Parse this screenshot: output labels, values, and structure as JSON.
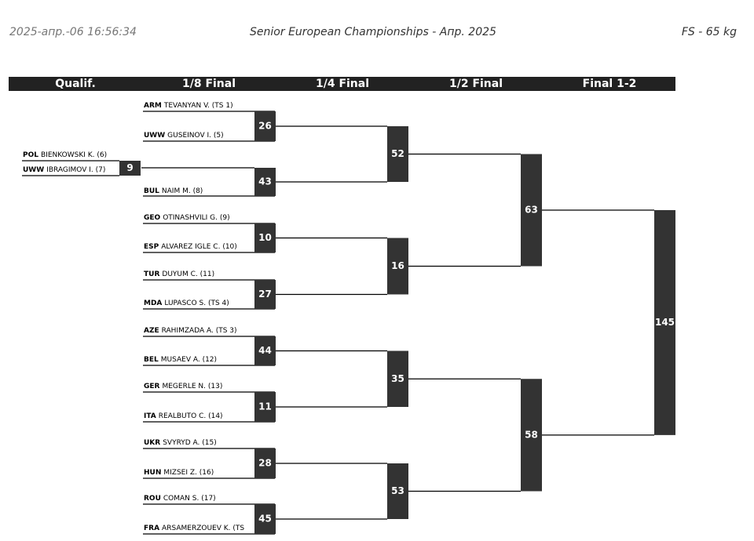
{
  "header": {
    "timestamp": "2025-апр.-06 16:56:34",
    "title": "Senior European Championships - Апр. 2025",
    "category": "FS - 65 kg"
  },
  "rounds": [
    "Qualif.",
    "1/8 Final",
    "1/4 Final",
    "1/2 Final",
    "Final 1-2"
  ],
  "qualif": {
    "entries": [
      {
        "country": "POL",
        "name": "BIENKOWSKI K. (6)"
      },
      {
        "country": "UWW",
        "name": "IBRAGIMOV I. (7)"
      }
    ],
    "match": 9
  },
  "eighth": [
    {
      "entries": [
        {
          "country": "ARM",
          "name": "TEVANYAN V. (TS 1)"
        },
        {
          "country": "UWW",
          "name": "GUSEINOV I. (5)"
        }
      ],
      "match": 26
    },
    {
      "entries": [
        {
          "country": "BUL",
          "name": "NAIM M. (8)"
        }
      ],
      "match": 43
    },
    {
      "entries": [
        {
          "country": "GEO",
          "name": "OTINASHVILI G. (9)"
        },
        {
          "country": "ESP",
          "name": "ALVAREZ IGLE C. (10)"
        }
      ],
      "match": 10
    },
    {
      "entries": [
        {
          "country": "TUR",
          "name": "DUYUM C. (11)"
        },
        {
          "country": "MDA",
          "name": "LUPASCO S. (TS 4)"
        }
      ],
      "match": 27
    },
    {
      "entries": [
        {
          "country": "AZE",
          "name": "RAHIMZADA A. (TS 3)"
        },
        {
          "country": "BEL",
          "name": "MUSAEV A. (12)"
        }
      ],
      "match": 44
    },
    {
      "entries": [
        {
          "country": "GER",
          "name": "MEGERLE N. (13)"
        },
        {
          "country": "ITA",
          "name": "REALBUTO C. (14)"
        }
      ],
      "match": 11
    },
    {
      "entries": [
        {
          "country": "UKR",
          "name": "SVYRYD A. (15)"
        },
        {
          "country": "HUN",
          "name": "MIZSEI Z. (16)"
        }
      ],
      "match": 28
    },
    {
      "entries": [
        {
          "country": "ROU",
          "name": "COMAN S. (17)"
        },
        {
          "country": "FRA",
          "name": "ARSAMERZOUEV K. (TS"
        }
      ],
      "match": 45
    }
  ],
  "quarter": [
    52,
    16,
    35,
    53
  ],
  "semi": [
    63,
    58
  ],
  "final": 145
}
